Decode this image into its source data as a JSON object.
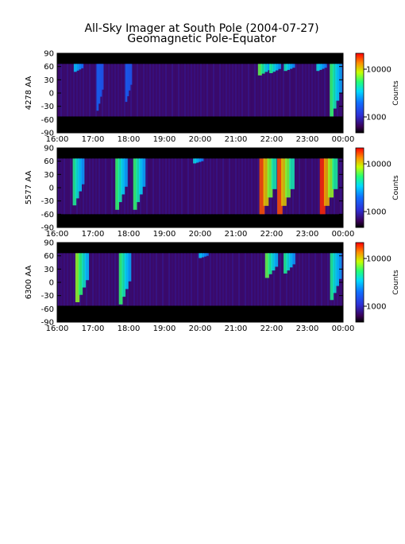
{
  "chart_data": {
    "type": "heatmap",
    "title": "All-Sky Imager at South Pole (2004-07-27)",
    "subtitle": "Geomagnetic Pole-Equator",
    "x_ticks": [
      "16:00",
      "17:00",
      "18:00",
      "19:00",
      "20:00",
      "21:00",
      "22:00",
      "23:00",
      "00:00"
    ],
    "xlim": [
      "16:00",
      "00:00"
    ],
    "y_ticks": [
      90,
      60,
      30,
      0,
      -30,
      -60,
      -90
    ],
    "ylim": [
      -90,
      90
    ],
    "colorbar": {
      "label": "Counts",
      "ticks": [
        "10000",
        "1000"
      ],
      "scale": "log"
    },
    "panels": [
      {
        "ylabel": "4278 AA",
        "valid_lat": [
          -53,
          66
        ],
        "events": [
          {
            "t": 16.6,
            "lat_top": 66,
            "lat_bottom": 48,
            "intensity": 0.28
          },
          {
            "t": 17.2,
            "lat_top": 66,
            "lat_bottom": -40,
            "intensity": 0.08
          },
          {
            "t": 18.0,
            "lat_top": 66,
            "lat_bottom": -20,
            "intensity": 0.06
          },
          {
            "t": 21.8,
            "lat_top": 66,
            "lat_bottom": 40,
            "intensity": 0.55
          },
          {
            "t": 22.1,
            "lat_top": 66,
            "lat_bottom": 45,
            "intensity": 0.45
          },
          {
            "t": 22.5,
            "lat_top": 66,
            "lat_bottom": 50,
            "intensity": 0.4
          },
          {
            "t": 23.4,
            "lat_top": 66,
            "lat_bottom": 50,
            "intensity": 0.35
          },
          {
            "t": 23.8,
            "lat_top": 66,
            "lat_bottom": -53,
            "intensity": 0.5
          }
        ]
      },
      {
        "ylabel": "5577 AA",
        "valid_lat": [
          -60,
          66
        ],
        "events": [
          {
            "t": 16.6,
            "lat_top": 66,
            "lat_bottom": -40,
            "intensity": 0.45
          },
          {
            "t": 17.8,
            "lat_top": 66,
            "lat_bottom": -50,
            "intensity": 0.5
          },
          {
            "t": 18.3,
            "lat_top": 66,
            "lat_bottom": -50,
            "intensity": 0.5
          },
          {
            "t": 19.95,
            "lat_top": 66,
            "lat_bottom": 55,
            "intensity": 0.35
          },
          {
            "t": 21.9,
            "lat_top": 66,
            "lat_bottom": -60,
            "intensity": 0.9
          },
          {
            "t": 22.4,
            "lat_top": 66,
            "lat_bottom": -60,
            "intensity": 0.9
          },
          {
            "t": 23.6,
            "lat_top": 66,
            "lat_bottom": -60,
            "intensity": 0.95
          }
        ]
      },
      {
        "ylabel": "6300 AA",
        "valid_lat": [
          -53,
          66
        ],
        "events": [
          {
            "t": 16.7,
            "lat_top": 66,
            "lat_bottom": -45,
            "intensity": 0.6
          },
          {
            "t": 17.9,
            "lat_top": 66,
            "lat_bottom": -50,
            "intensity": 0.5
          },
          {
            "t": 20.1,
            "lat_top": 66,
            "lat_bottom": 55,
            "intensity": 0.3
          },
          {
            "t": 22.0,
            "lat_top": 66,
            "lat_bottom": 10,
            "intensity": 0.55
          },
          {
            "t": 22.5,
            "lat_top": 66,
            "lat_bottom": 20,
            "intensity": 0.45
          },
          {
            "t": 23.8,
            "lat_top": 66,
            "lat_bottom": -40,
            "intensity": 0.45
          }
        ]
      }
    ]
  }
}
